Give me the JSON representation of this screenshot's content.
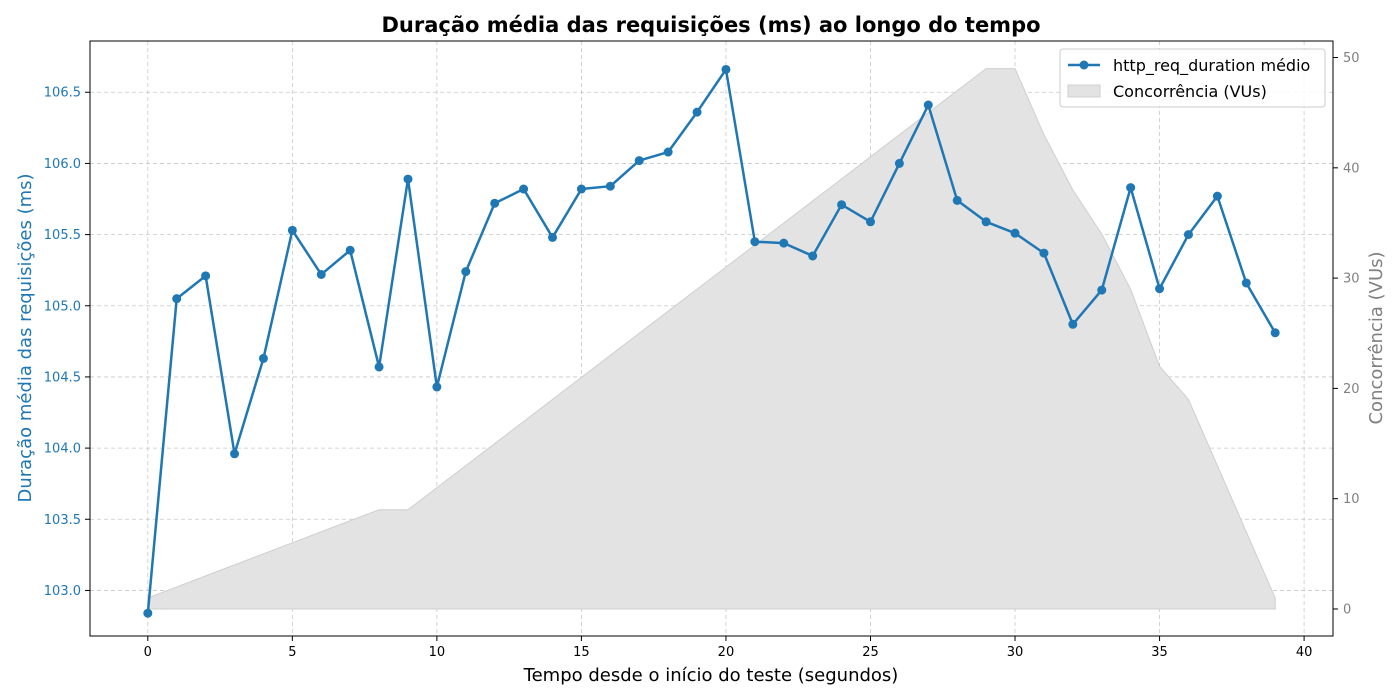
{
  "chart_data": {
    "type": "line",
    "title": "Duração média das requisições (ms) ao longo do tempo",
    "xlabel": "Tempo desde o início do teste (segundos)",
    "ylabel": "Duração média das requisições (ms)",
    "y2label": "Concorrência (VUs)",
    "xlim": [
      -2,
      41
    ],
    "ylim": [
      102.68,
      106.86
    ],
    "y2lim": [
      -2.45,
      51.5
    ],
    "xticks": [
      0,
      5,
      10,
      15,
      20,
      25,
      30,
      35,
      40
    ],
    "yticks": [
      103.0,
      103.5,
      104.0,
      104.5,
      105.0,
      105.5,
      106.0,
      106.5
    ],
    "y2ticks": [
      0,
      10,
      20,
      30,
      40,
      50
    ],
    "grid": true,
    "legend_position": "top-right",
    "colors": {
      "line": "#1f77b4",
      "area_fill": "#e3e3e3",
      "area_edge": "#cfcfcf",
      "secondary_axis": "#808080"
    },
    "series": [
      {
        "name": "http_req_duration médio",
        "axis": "left",
        "type": "line",
        "x": [
          0,
          1,
          2,
          3,
          4,
          5,
          6,
          7,
          8,
          9,
          10,
          11,
          12,
          13,
          14,
          15,
          16,
          17,
          18,
          19,
          20,
          21,
          22,
          23,
          24,
          25,
          26,
          27,
          28,
          29,
          30,
          31,
          32,
          33,
          34,
          35,
          36,
          37,
          38,
          39
        ],
        "y": [
          102.84,
          105.05,
          105.21,
          103.96,
          104.63,
          105.53,
          105.22,
          105.39,
          104.57,
          105.89,
          104.43,
          105.24,
          105.72,
          105.82,
          105.48,
          105.82,
          105.84,
          106.02,
          106.08,
          106.36,
          106.66,
          105.45,
          105.44,
          105.35,
          105.71,
          105.59,
          106.0,
          106.41,
          105.74,
          105.59,
          105.51,
          105.37,
          104.87,
          105.11,
          105.83,
          105.12,
          105.5,
          105.77,
          105.16,
          104.81
        ]
      },
      {
        "name": "Concorrência (VUs)",
        "axis": "right",
        "type": "area",
        "x": [
          0,
          1,
          2,
          3,
          4,
          5,
          6,
          7,
          8,
          9,
          10,
          11,
          12,
          13,
          14,
          15,
          16,
          17,
          18,
          19,
          20,
          21,
          22,
          23,
          24,
          25,
          26,
          27,
          28,
          29,
          30,
          31,
          32,
          33,
          34,
          35,
          36,
          37,
          38,
          39
        ],
        "y": [
          1,
          2,
          3,
          4,
          5,
          6,
          7,
          8,
          9,
          9,
          11,
          13,
          15,
          17,
          19,
          21,
          23,
          25,
          27,
          29,
          31,
          33,
          35,
          37,
          39,
          41,
          43,
          45,
          47,
          49,
          49,
          43,
          38,
          34,
          29,
          22,
          19,
          13,
          7,
          1
        ]
      }
    ]
  }
}
